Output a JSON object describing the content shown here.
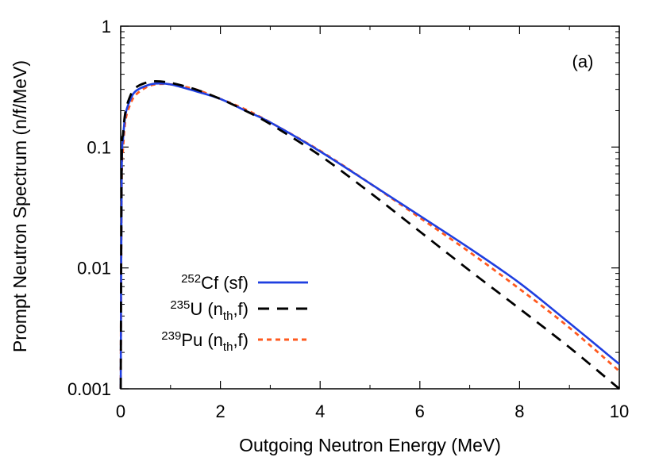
{
  "chart_data": {
    "type": "line",
    "panel_label": "(a)",
    "xlabel": "Outgoing Neutron Energy (MeV)",
    "ylabel": "Prompt Neutron Spectrum (n/f/MeV)",
    "xlim": [
      0,
      10
    ],
    "ylim": [
      0.001,
      1
    ],
    "yscale": "log",
    "grid": false,
    "legend_position": "bottom-left",
    "x_ticks": [
      0,
      2,
      4,
      6,
      8,
      10
    ],
    "x_tick_labels": [
      "0",
      "2",
      "4",
      "6",
      "8",
      "10"
    ],
    "y_ticks": [
      0.001,
      0.01,
      0.1,
      1
    ],
    "y_tick_labels": [
      "0.001",
      "0.01",
      "0.1",
      "1"
    ],
    "series": [
      {
        "name": "252Cf (sf)",
        "legend": {
          "sup": "252",
          "main": "Cf (sf)",
          "sub": "",
          "tail": ""
        },
        "color": "#1f3fe0",
        "dash": "solid",
        "x": [
          0.001,
          0.02,
          0.05,
          0.1,
          0.2,
          0.3,
          0.5,
          0.7,
          1.0,
          1.5,
          2.0,
          2.5,
          3.0,
          4.0,
          5.0,
          6.0,
          7.0,
          8.0,
          9.0,
          10.0
        ],
        "y": [
          0.001,
          0.06,
          0.12,
          0.19,
          0.25,
          0.29,
          0.32,
          0.335,
          0.33,
          0.29,
          0.25,
          0.2,
          0.16,
          0.092,
          0.05,
          0.027,
          0.0145,
          0.0075,
          0.0035,
          0.0016
        ]
      },
      {
        "name": "235U (nth,f)",
        "legend": {
          "sup": "235",
          "main": "U (n",
          "sub": "th",
          "tail": ",f)"
        },
        "color": "#000000",
        "dash": "long-dash",
        "x": [
          0.001,
          0.02,
          0.05,
          0.1,
          0.2,
          0.3,
          0.5,
          0.7,
          1.0,
          1.5,
          2.0,
          2.5,
          3.0,
          4.0,
          5.0,
          6.0,
          7.0,
          8.0,
          9.0,
          10.0
        ],
        "y": [
          0.001,
          0.07,
          0.13,
          0.2,
          0.27,
          0.31,
          0.34,
          0.35,
          0.34,
          0.3,
          0.25,
          0.2,
          0.155,
          0.085,
          0.042,
          0.02,
          0.0095,
          0.0046,
          0.0022,
          0.001
        ]
      },
      {
        "name": "239Pu (nth,f)",
        "legend": {
          "sup": "239",
          "main": "Pu (n",
          "sub": "th",
          "tail": ",f)"
        },
        "color": "#ff5a1f",
        "dash": "short-dash",
        "x": [
          0.001,
          0.02,
          0.05,
          0.1,
          0.2,
          0.3,
          0.5,
          0.7,
          1.0,
          1.5,
          2.0,
          2.5,
          3.0,
          4.0,
          5.0,
          6.0,
          7.0,
          8.0,
          9.0,
          10.0
        ],
        "y": [
          0.001,
          0.05,
          0.1,
          0.17,
          0.23,
          0.27,
          0.31,
          0.33,
          0.33,
          0.3,
          0.25,
          0.205,
          0.16,
          0.093,
          0.05,
          0.026,
          0.0135,
          0.0067,
          0.0032,
          0.0014
        ]
      }
    ]
  }
}
